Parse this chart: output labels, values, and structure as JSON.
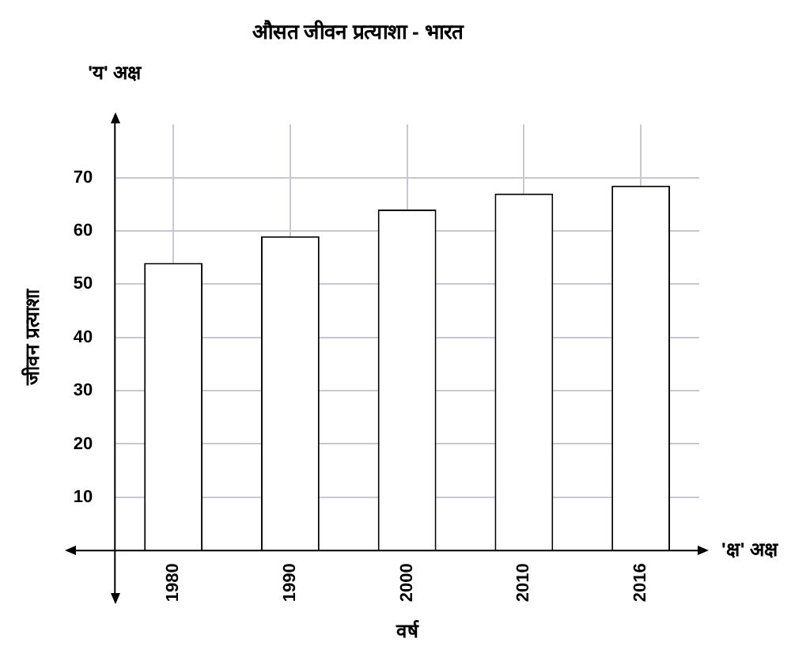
{
  "chart_data": {
    "type": "bar",
    "title": "औसत जीवन प्रत्याशा - भारत",
    "xlabel": "वर्ष",
    "ylabel": "जीवन प्रत्याशा",
    "annotations": [
      "'य' अक्ष",
      "'क्ष' अक्ष"
    ],
    "categories": [
      "1980",
      "1990",
      "2000",
      "2010",
      "2016"
    ],
    "values": [
      54,
      59,
      64,
      67,
      68.5
    ],
    "color": "#ffffff",
    "ylim": [
      0,
      80
    ],
    "yticks": [
      10,
      20,
      30,
      40,
      50,
      60,
      70
    ],
    "grid": true,
    "legend": false
  }
}
